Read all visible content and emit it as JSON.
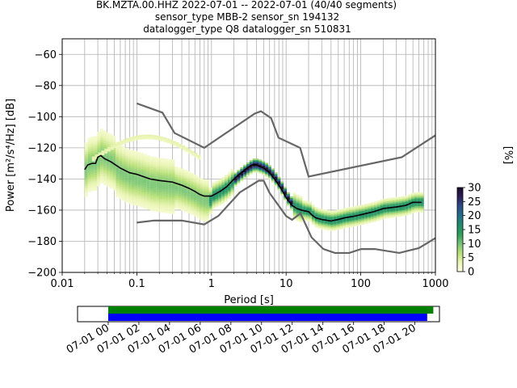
{
  "header": {
    "line1": "BK.MZTA.00.HHZ   2022-07-01 -- 2022-07-01  (40/40 segments)",
    "line2": "sensor_type MBB-2 sensor_sn 194132",
    "line3": "datalogger_type Q8 datalogger_sn 510831"
  },
  "chart_data": [
    {
      "type": "heatmap",
      "subtype": "probabilistic power spectral density",
      "xlabel": "Period [s]",
      "ylabel": "Power [m²/s⁴/Hz] [dB]",
      "xscale": "log",
      "xlim": [
        0.01,
        1000
      ],
      "ylim": [
        -200,
        -50
      ],
      "grid": true,
      "x_ticks": [
        {
          "v": 0.01,
          "label": "0.01"
        },
        {
          "v": 0.1,
          "label": "0.1"
        },
        {
          "v": 1,
          "label": "1"
        },
        {
          "v": 10,
          "label": "10"
        },
        {
          "v": 100,
          "label": "100"
        },
        {
          "v": 1000,
          "label": "1000"
        }
      ],
      "y_ticks": [
        {
          "v": -60,
          "label": "−60"
        },
        {
          "v": -80,
          "label": "−80"
        },
        {
          "v": -100,
          "label": "−100"
        },
        {
          "v": -120,
          "label": "−120"
        },
        {
          "v": -140,
          "label": "−140"
        },
        {
          "v": -160,
          "label": "−160"
        },
        {
          "v": -180,
          "label": "−180"
        },
        {
          "v": -200,
          "label": "−200"
        }
      ],
      "colorbar": {
        "label": "[%]",
        "min": 0,
        "max": 30,
        "ticks": [
          {
            "v": 0,
            "label": "0"
          },
          {
            "v": 5,
            "label": "5"
          },
          {
            "v": 10,
            "label": "10"
          },
          {
            "v": 15,
            "label": "15"
          },
          {
            "v": 20,
            "label": "20"
          },
          {
            "v": 25,
            "label": "25"
          },
          {
            "v": 30,
            "label": "30"
          }
        ],
        "colors": [
          "#ffffe5",
          "#e9f5b1",
          "#b7e075",
          "#74c476",
          "#2da05a",
          "#1f8c6c",
          "#20708a",
          "#2b4c8a",
          "#2d1e5a",
          "#1a0a2a"
        ]
      },
      "mean_curve": [
        [
          0.02,
          -134
        ],
        [
          0.022,
          -131
        ],
        [
          0.025,
          -130
        ],
        [
          0.028,
          -130
        ],
        [
          0.03,
          -126
        ],
        [
          0.033,
          -125
        ],
        [
          0.037,
          -127
        ],
        [
          0.045,
          -129
        ],
        [
          0.06,
          -133
        ],
        [
          0.08,
          -136
        ],
        [
          0.1,
          -137
        ],
        [
          0.15,
          -140
        ],
        [
          0.2,
          -141
        ],
        [
          0.3,
          -142
        ],
        [
          0.4,
          -144
        ],
        [
          0.5,
          -146
        ],
        [
          0.6,
          -148
        ],
        [
          0.7,
          -150
        ],
        [
          0.8,
          -151
        ],
        [
          1,
          -151
        ],
        [
          1.3,
          -148
        ],
        [
          1.6,
          -145
        ],
        [
          2,
          -140
        ],
        [
          2.5,
          -136
        ],
        [
          3,
          -133
        ],
        [
          3.5,
          -131
        ],
        [
          4,
          -131
        ],
        [
          5,
          -133
        ],
        [
          6,
          -136
        ],
        [
          7,
          -140
        ],
        [
          8,
          -144
        ],
        [
          9,
          -148
        ],
        [
          10,
          -152
        ],
        [
          12,
          -157
        ],
        [
          14,
          -159
        ],
        [
          16,
          -160
        ],
        [
          20,
          -161
        ],
        [
          22,
          -163
        ],
        [
          25,
          -165
        ],
        [
          30,
          -166
        ],
        [
          40,
          -167
        ],
        [
          50,
          -166
        ],
        [
          60,
          -165
        ],
        [
          80,
          -164
        ],
        [
          100,
          -163
        ],
        [
          150,
          -161
        ],
        [
          200,
          -159
        ],
        [
          300,
          -158
        ],
        [
          400,
          -157
        ],
        [
          500,
          -155
        ],
        [
          650,
          -155
        ]
      ],
      "high_noise_model": [
        [
          0.1,
          -91.5
        ],
        [
          0.22,
          -97.4
        ],
        [
          0.32,
          -110.5
        ],
        [
          0.8,
          -120
        ],
        [
          3.8,
          -98
        ],
        [
          4.6,
          -96.5
        ],
        [
          6.3,
          -101
        ],
        [
          7.9,
          -113.5
        ],
        [
          15.4,
          -120
        ],
        [
          20,
          -138.5
        ],
        [
          354.8,
          -126
        ],
        [
          1000,
          -112
        ]
      ],
      "low_noise_model": [
        [
          0.1,
          -168
        ],
        [
          0.17,
          -166.7
        ],
        [
          0.4,
          -166.7
        ],
        [
          0.8,
          -169.2
        ],
        [
          1.24,
          -163.7
        ],
        [
          2.4,
          -148.6
        ],
        [
          4.3,
          -141.1
        ],
        [
          5,
          -141.1
        ],
        [
          6,
          -149
        ],
        [
          10,
          -163.8
        ],
        [
          12,
          -166.2
        ],
        [
          15.6,
          -162.1
        ],
        [
          21.9,
          -177.5
        ],
        [
          31.6,
          -185
        ],
        [
          45,
          -187.5
        ],
        [
          70,
          -187.5
        ],
        [
          101,
          -185
        ],
        [
          154,
          -185
        ],
        [
          328,
          -187.5
        ],
        [
          600,
          -184.4
        ],
        [
          1000,
          -178
        ]
      ],
      "series": [
        {
          "name": "",
          "values": []
        }
      ]
    },
    {
      "type": "bar",
      "subtype": "data coverage timeline",
      "x_ticks": [
        "07-01 00",
        "07-01 02",
        "07-01 04",
        "07-01 06",
        "07-01 08",
        "07-01 10",
        "07-01 12",
        "07-01 14",
        "07-01 16",
        "07-01 18",
        "07-01 20"
      ],
      "xlim_hours": [
        -2,
        21.6
      ],
      "coverage": [
        {
          "color": "#008000",
          "start_hour": 0,
          "end_hour": 21.2
        },
        {
          "color": "#0000ff",
          "start_hour": 0,
          "end_hour": 20.8
        }
      ]
    }
  ]
}
